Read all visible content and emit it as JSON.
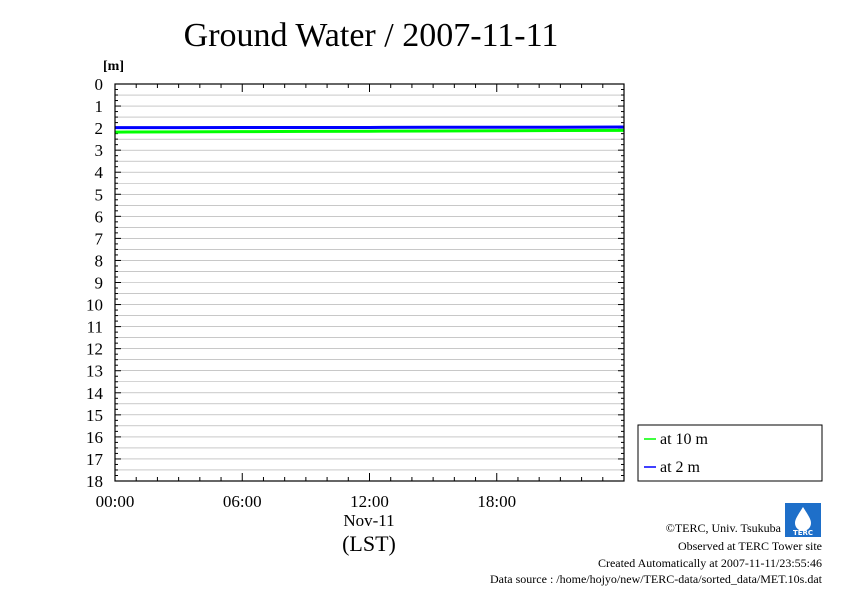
{
  "chart_data": {
    "type": "line",
    "title": "Ground Water / 2007-11-11",
    "ylabel": "[m]",
    "ylim": [
      0,
      18
    ],
    "y_inverted": true,
    "yticks": [
      "0",
      "1",
      "2",
      "3",
      "4",
      "5",
      "6",
      "7",
      "8",
      "9",
      "10",
      "11",
      "12",
      "13",
      "14",
      "15",
      "16",
      "17",
      "18"
    ],
    "xlim": [
      0,
      24
    ],
    "xticks": [
      {
        "value": 0,
        "label": "00:00"
      },
      {
        "value": 6,
        "label": "06:00"
      },
      {
        "value": 12,
        "label": "12:00"
      },
      {
        "value": 18,
        "label": "18:00"
      }
    ],
    "xdate": "Nov-11",
    "xlabel": "(LST)",
    "grid": true,
    "legend_position": "bottom-right outside",
    "series": [
      {
        "name": "at 10 m",
        "color": "#00ff00",
        "x": [
          0,
          3,
          6,
          9,
          12,
          15,
          18,
          21,
          24
        ],
        "values": [
          2.18,
          2.17,
          2.16,
          2.15,
          2.14,
          2.13,
          2.12,
          2.11,
          2.1
        ]
      },
      {
        "name": "at 2 m",
        "color": "#0000ff",
        "x": [
          0,
          3,
          6,
          9,
          12,
          15,
          18,
          21,
          24
        ],
        "values": [
          1.98,
          1.98,
          1.97,
          1.97,
          1.97,
          1.96,
          1.96,
          1.96,
          1.95
        ]
      }
    ]
  },
  "footer": {
    "copyright": "©TERC, Univ. Tsukuba",
    "observed": "Observed at TERC Tower site",
    "created": "Created Automatically at 2007-11-11/23:55:46",
    "source": "Data source : /home/hojyo/new/TERC-data/sorted_data/MET.10s.dat",
    "logo_text": "TERC"
  }
}
